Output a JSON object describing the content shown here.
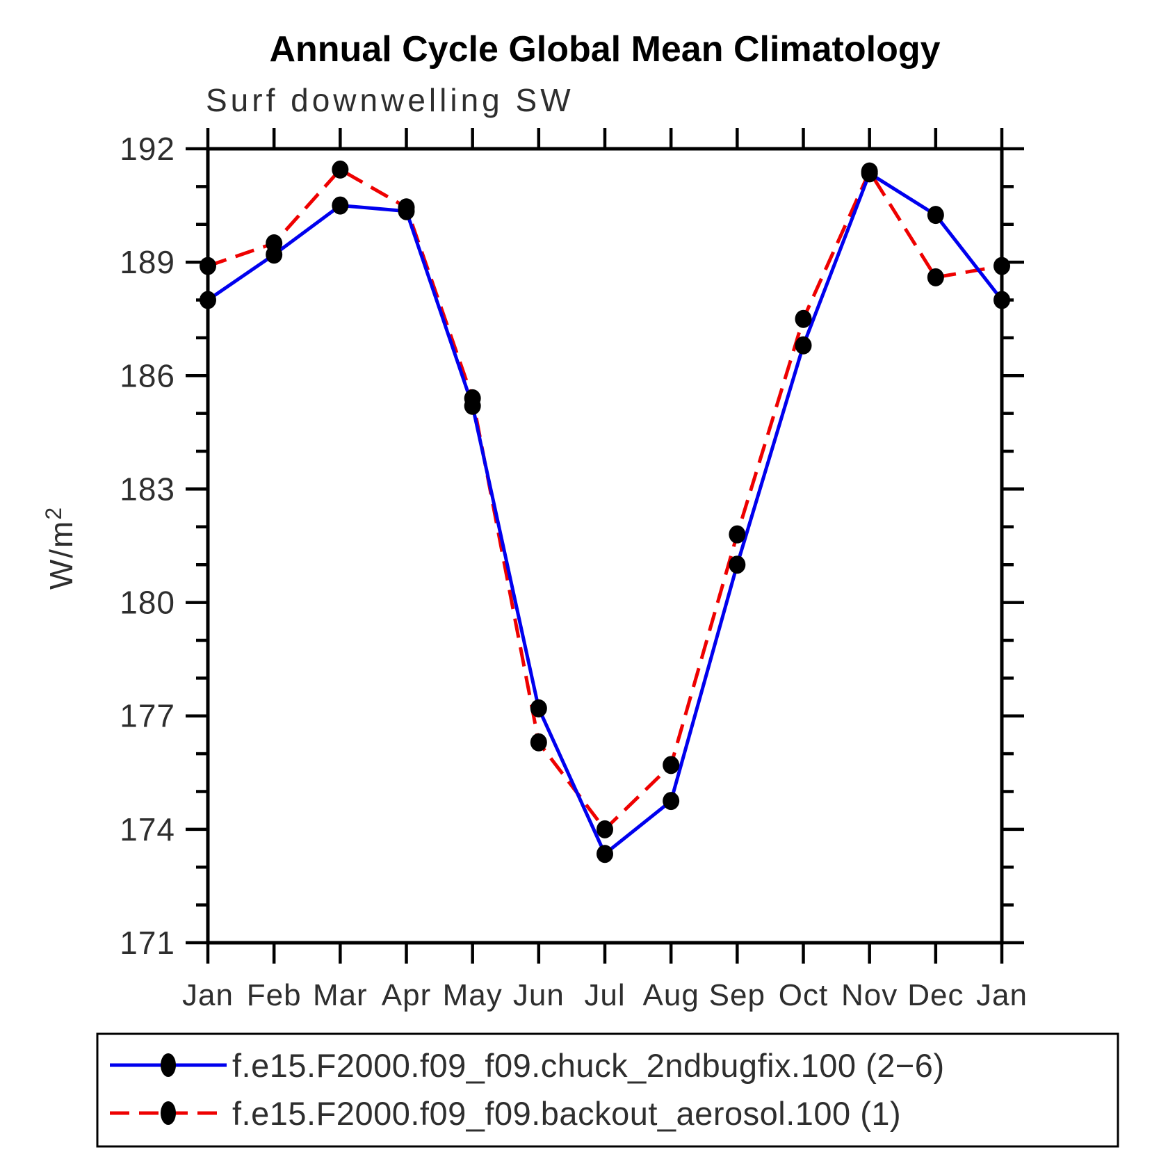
{
  "title": "Annual Cycle Global Mean Climatology",
  "subtitle": "Surf downwelling SW",
  "chart_data": {
    "type": "line",
    "title": "Annual Cycle Global Mean Climatology",
    "subtitle": "Surf downwelling SW",
    "xlabel": "",
    "ylabel": "W/m²",
    "categories": [
      "Jan",
      "Feb",
      "Mar",
      "Apr",
      "May",
      "Jun",
      "Jul",
      "Aug",
      "Sep",
      "Oct",
      "Nov",
      "Dec",
      "Jan"
    ],
    "ylim": [
      171,
      192
    ],
    "yticks_major": [
      171,
      174,
      177,
      180,
      183,
      186,
      189,
      192
    ],
    "ytick_minor_step": 1,
    "grid": false,
    "legend_position": "bottom",
    "marker": "filled-circle",
    "marker_color": "#000000",
    "series": [
      {
        "name": "f.e15.F2000.f09_f09.chuck_2ndbugfix.100 (2−6)",
        "color": "#0000ee",
        "style": "solid",
        "values": [
          188.0,
          189.2,
          190.5,
          190.35,
          185.2,
          177.2,
          173.35,
          174.75,
          181.0,
          186.8,
          191.35,
          190.25,
          188.0
        ]
      },
      {
        "name": "f.e15.F2000.f09_f09.backout_aerosol.100 (1)",
        "color": "#ee0000",
        "style": "dashed",
        "values": [
          188.9,
          189.5,
          191.45,
          190.45,
          185.4,
          176.3,
          174.0,
          175.7,
          181.8,
          187.5,
          191.4,
          188.6,
          188.9
        ]
      }
    ]
  }
}
